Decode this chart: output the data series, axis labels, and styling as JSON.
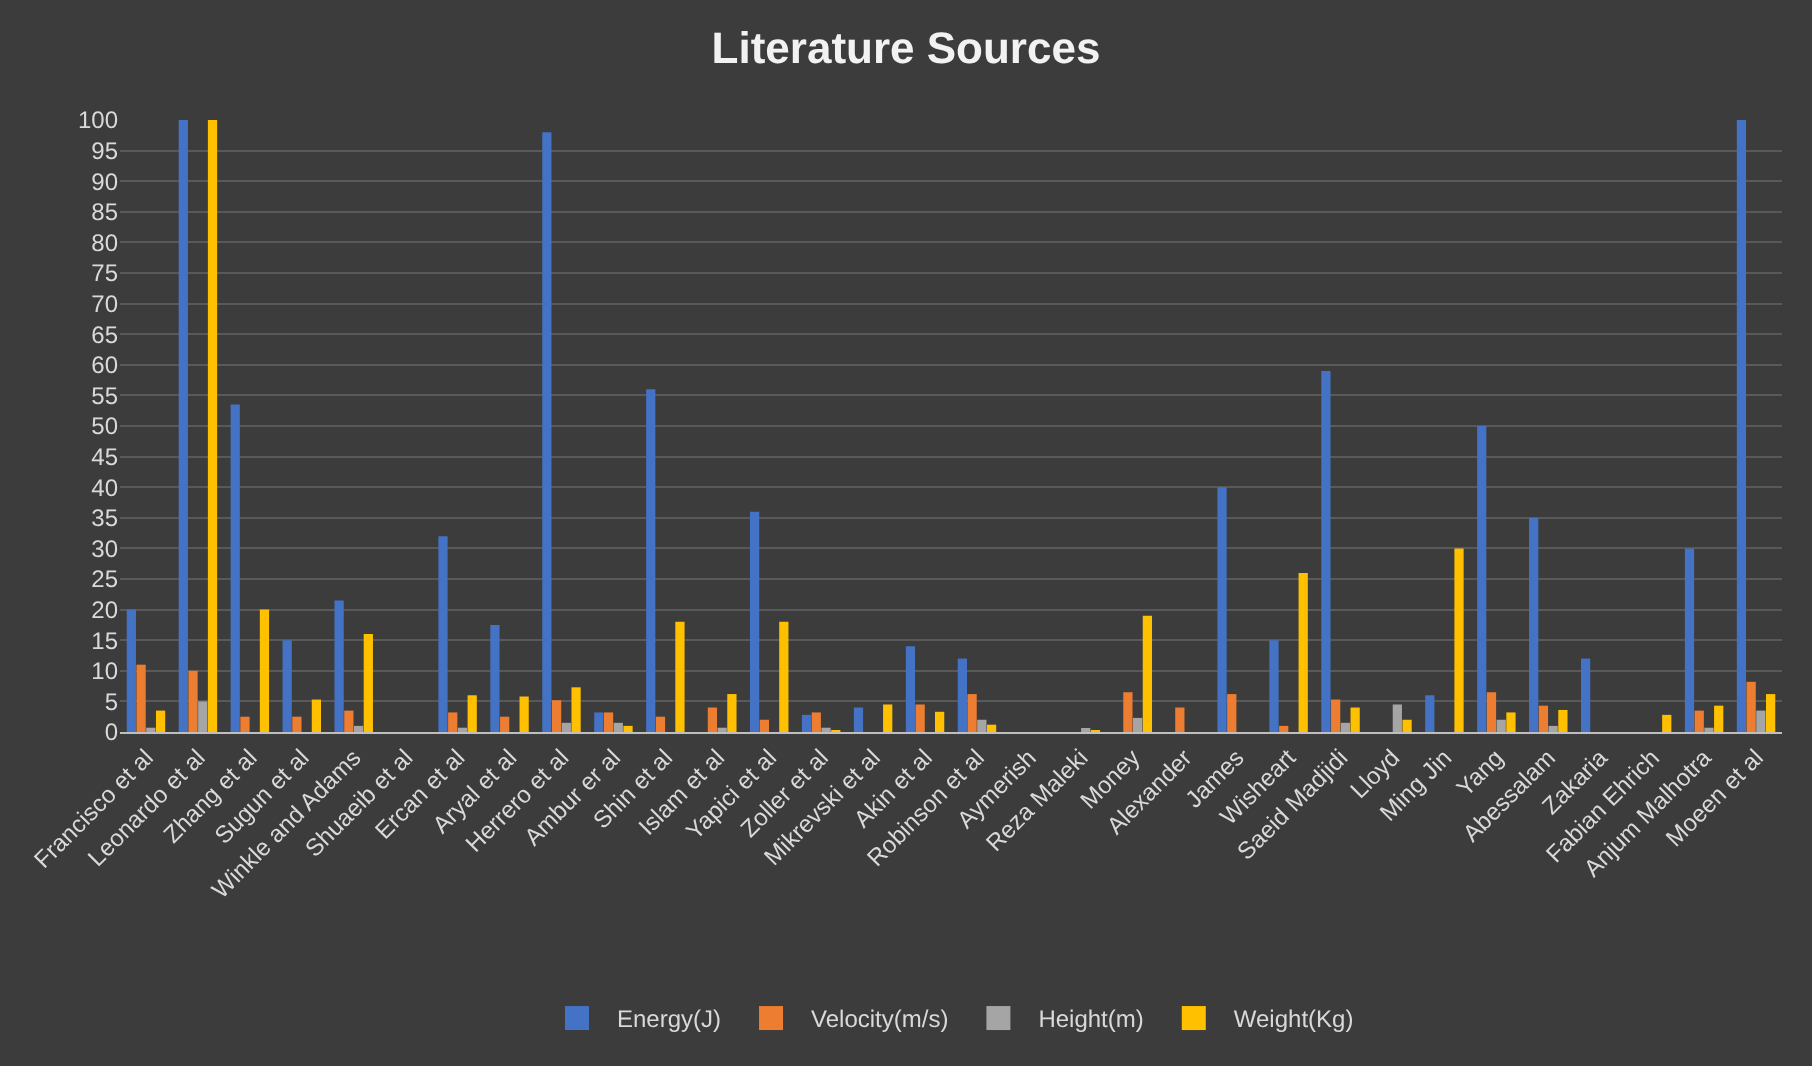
{
  "chart_data": {
    "type": "bar",
    "title": "Literature Sources",
    "categories": [
      "Francisco et al",
      "Leonardo et al",
      "Zhang et al",
      "Sugun et al",
      "Winkle and Adams",
      "Shuaeib et al",
      "Ercan et al",
      "Aryal et al",
      "Herrero et al",
      "Ambur er al",
      "Shin et al",
      "Islam et al",
      "Yapici et al",
      "Zoller et al",
      "Mikrevski et al",
      "Akin et al",
      "Robinson et al",
      "Aymerish",
      "Reza Maleki",
      "Money",
      "Alexander",
      "James",
      "Wisheart",
      "Saeid Madjidi",
      "Lloyd",
      "Ming Jin",
      "Yang",
      "Abessalam",
      "Zakaria",
      "Fabian Ehrich",
      "Anjum Malhotra",
      "Moeen et al"
    ],
    "series": [
      {
        "name": "Energy(J)",
        "color": "#4472c4",
        "values": [
          20,
          100,
          53.5,
          15,
          21.5,
          0,
          32,
          17.5,
          98,
          3.2,
          56,
          0,
          36,
          2.8,
          4,
          14,
          12,
          0,
          0,
          0,
          0,
          40,
          15,
          59,
          0,
          6,
          50,
          35,
          12,
          0,
          30,
          100
        ]
      },
      {
        "name": "Velocity(m/s)",
        "color": "#ed7d31",
        "values": [
          11,
          10,
          2.5,
          2.5,
          3.5,
          0,
          3.2,
          2.5,
          5.2,
          3.2,
          2.5,
          4,
          2,
          3.2,
          0,
          4.5,
          6.2,
          0,
          0,
          6.5,
          4,
          6.2,
          1,
          5.3,
          0,
          0,
          6.5,
          4.3,
          0,
          0,
          3.5,
          8.2
        ]
      },
      {
        "name": "Height(m)",
        "color": "#a5a5a5",
        "values": [
          0.7,
          5,
          null,
          null,
          1,
          0,
          0.7,
          0,
          1.5,
          1.5,
          null,
          0.7,
          0,
          0.7,
          0,
          0,
          2,
          0,
          0.6,
          2.3,
          0,
          0,
          0,
          1.5,
          4.5,
          null,
          2,
          1,
          0,
          0,
          0.7,
          3.5
        ]
      },
      {
        "name": "Weight(Kg)",
        "color": "#ffc000",
        "values": [
          3.5,
          100,
          20,
          5.3,
          16,
          0,
          6,
          5.8,
          7.3,
          1,
          18,
          6.2,
          18,
          0.3,
          4.5,
          3.3,
          1.2,
          0,
          0.3,
          19,
          0,
          0,
          26,
          4,
          2,
          30,
          3.2,
          3.6,
          0,
          2.8,
          4.3,
          6.2
        ]
      }
    ],
    "ylim": [
      0,
      100
    ],
    "yticks": [
      0,
      5,
      10,
      15,
      20,
      25,
      30,
      35,
      40,
      45,
      50,
      55,
      60,
      65,
      70,
      75,
      80,
      85,
      90,
      95,
      100
    ],
    "grid": "y",
    "legend": "bottom"
  }
}
